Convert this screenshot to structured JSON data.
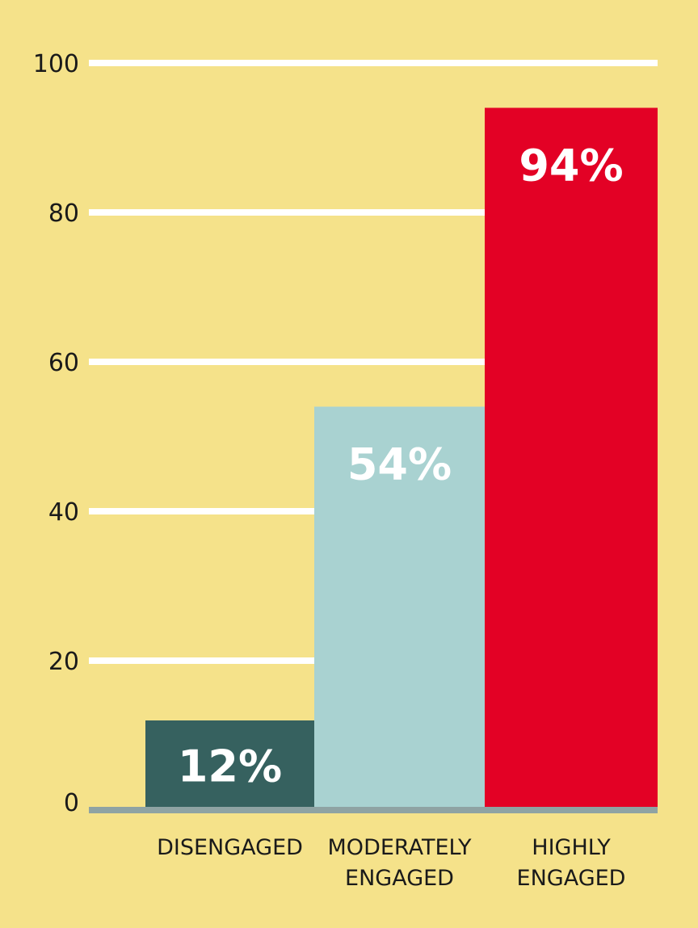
{
  "chart_data": {
    "type": "bar",
    "title": "",
    "xlabel": "",
    "ylabel": "",
    "ylim": [
      0,
      100
    ],
    "yticks": [
      0,
      20,
      40,
      60,
      80,
      100
    ],
    "grid": true,
    "categories": [
      [
        "DISENGAGED"
      ],
      [
        "MODERATELY",
        "ENGAGED"
      ],
      [
        "HIGHLY",
        "ENGAGED"
      ]
    ],
    "values": [
      12,
      54,
      94
    ],
    "data_labels": [
      "12%",
      "54%",
      "94%"
    ],
    "colors": {
      "background": "#f5e28a",
      "gridline": "#ffffff",
      "baseline": "#8fa3a3",
      "text": "#1a1a1a",
      "data_label_text": "#ffffff",
      "bars": [
        "#36615f",
        "#a9d2d1",
        "#e30125"
      ]
    }
  }
}
